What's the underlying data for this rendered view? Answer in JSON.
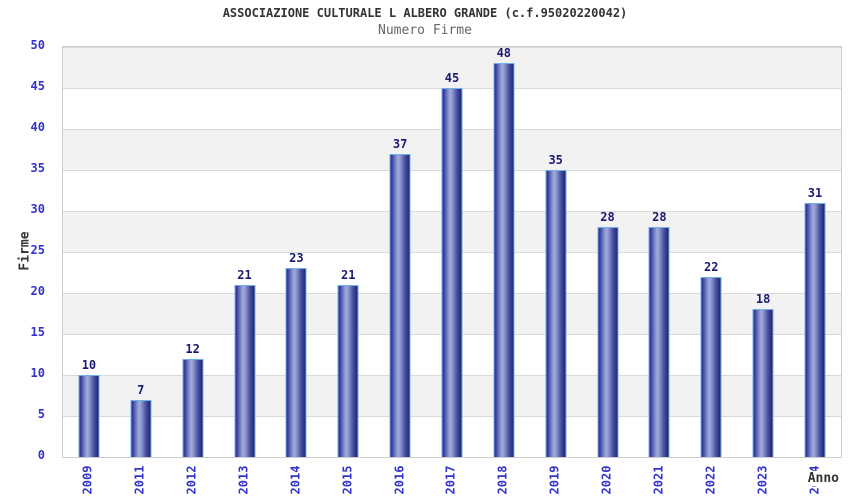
{
  "header": {
    "title": "ASSOCIAZIONE CULTURALE L ALBERO GRANDE (c.f.95020220042)",
    "subtitle": "Numero Firme"
  },
  "chart_data": {
    "type": "bar",
    "title": "ASSOCIAZIONE CULTURALE L ALBERO GRANDE (c.f.95020220042)",
    "subtitle": "Numero Firme",
    "xlabel": "Anno",
    "ylabel": "Firme",
    "categories": [
      "2009",
      "2011",
      "2012",
      "2013",
      "2014",
      "2015",
      "2016",
      "2017",
      "2018",
      "2019",
      "2020",
      "2021",
      "2022",
      "2023",
      "2024"
    ],
    "values": [
      10,
      7,
      12,
      21,
      23,
      21,
      37,
      45,
      48,
      35,
      28,
      28,
      22,
      18,
      31
    ],
    "ylim": [
      0,
      50
    ],
    "ytick_step": 5,
    "yticks": [
      0,
      5,
      10,
      15,
      20,
      25,
      30,
      35,
      40,
      45,
      50
    ],
    "grid": true,
    "legend_position": "none",
    "band_fill": true,
    "colors": {
      "bar_dark": "#262a94",
      "bar_light": "#a2aade",
      "bar_border": "#70b0e8",
      "axis_tick_label": "#3333cc",
      "value_label": "#1a1a75",
      "band": "#f2f2f2",
      "gridline": "#d9d9d9",
      "plot_border": "#cccccc",
      "title": "#333333",
      "subtitle": "#666666"
    }
  }
}
